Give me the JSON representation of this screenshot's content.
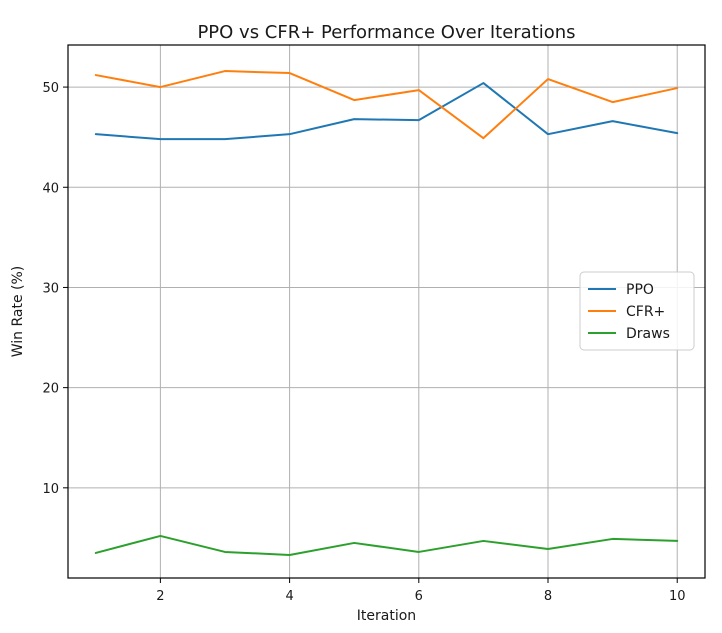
{
  "chart_data": {
    "type": "line",
    "title": "PPO vs CFR+ Performance Over Iterations",
    "xlabel": "Iteration",
    "ylabel": "Win Rate (%)",
    "x": [
      1,
      2,
      3,
      4,
      5,
      6,
      7,
      8,
      9,
      10
    ],
    "xlim": [
      0.57,
      10.43
    ],
    "ylim": [
      1.0,
      54.2
    ],
    "xticks": [
      2,
      4,
      6,
      8,
      10
    ],
    "yticks": [
      10,
      20,
      30,
      40,
      50
    ],
    "grid": true,
    "legend_position": "center-right",
    "series": [
      {
        "name": "PPO",
        "color": "#1f77b4",
        "values": [
          45.3,
          44.8,
          44.8,
          45.3,
          46.8,
          46.7,
          50.4,
          45.3,
          46.6,
          45.4
        ]
      },
      {
        "name": "CFR+",
        "color": "#ff7f0e",
        "values": [
          51.2,
          50.0,
          51.6,
          51.4,
          48.7,
          49.7,
          44.9,
          50.8,
          48.5,
          49.9
        ]
      },
      {
        "name": "Draws",
        "color": "#2ca02c",
        "values": [
          3.5,
          5.2,
          3.6,
          3.3,
          4.5,
          3.6,
          4.7,
          3.9,
          4.9,
          4.7
        ]
      }
    ]
  }
}
